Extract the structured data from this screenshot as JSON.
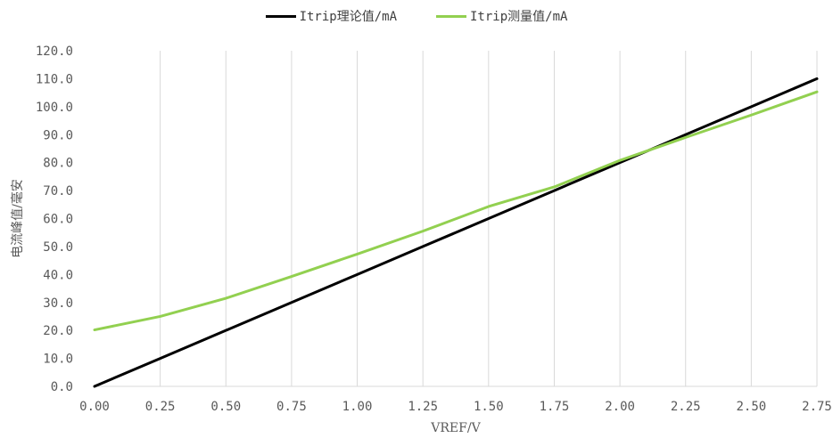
{
  "chart_data": {
    "type": "line",
    "title": "",
    "xlabel": "VREF/V",
    "ylabel": "电流峰值/毫安",
    "x": [
      0.0,
      0.25,
      0.5,
      0.75,
      1.0,
      1.25,
      1.5,
      1.75,
      2.0,
      2.25,
      2.5,
      2.75
    ],
    "x_tick_labels": [
      "0.00",
      "0.25",
      "0.50",
      "0.75",
      "1.00",
      "1.25",
      "1.50",
      "1.75",
      "2.00",
      "2.25",
      "2.50",
      "2.75"
    ],
    "y_tick_labels": [
      "0.0",
      "10.0",
      "20.0",
      "30.0",
      "40.0",
      "50.0",
      "60.0",
      "70.0",
      "80.0",
      "90.0",
      "100.0",
      "110.0",
      "120.0"
    ],
    "xlim": [
      0,
      2.75
    ],
    "ylim": [
      0,
      120
    ],
    "grid": "vertical",
    "legend_position": "top",
    "series": [
      {
        "name": "Itrip理论值/mA",
        "color": "#000000",
        "values": [
          0,
          10,
          20,
          30,
          40,
          50,
          60,
          70,
          80,
          90,
          100,
          110
        ]
      },
      {
        "name": "Itrip测量值/mA",
        "color": "#92d050",
        "values": [
          20.2,
          25.0,
          31.5,
          39.3,
          47.3,
          55.5,
          64.3,
          71.3,
          80.8,
          89.0,
          97.0,
          105.3
        ]
      }
    ]
  }
}
